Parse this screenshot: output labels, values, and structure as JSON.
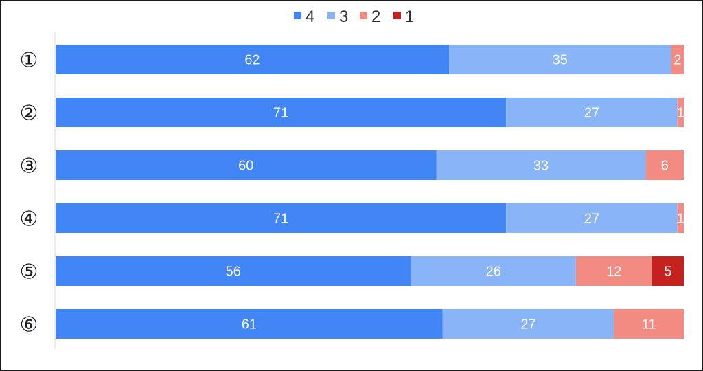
{
  "chart_data": {
    "type": "bar",
    "orientation": "horizontal",
    "stacked": true,
    "categories": [
      "①",
      "②",
      "③",
      "④",
      "⑤",
      "⑥"
    ],
    "series": [
      {
        "name": "4",
        "color": "#4285f4",
        "values": [
          62,
          71,
          60,
          71,
          56,
          61
        ]
      },
      {
        "name": "3",
        "color": "#8ab4f8",
        "values": [
          35,
          27,
          33,
          27,
          26,
          27
        ]
      },
      {
        "name": "2",
        "color": "#f28b82",
        "values": [
          2,
          1,
          6,
          1,
          12,
          11
        ]
      },
      {
        "name": "1",
        "color": "#c5221f",
        "values": [
          0,
          0,
          0,
          0,
          5,
          0
        ]
      }
    ],
    "xlim": [
      0,
      99
    ],
    "legend_position": "top",
    "grid": false,
    "title": "",
    "xlabel": "",
    "ylabel": ""
  }
}
